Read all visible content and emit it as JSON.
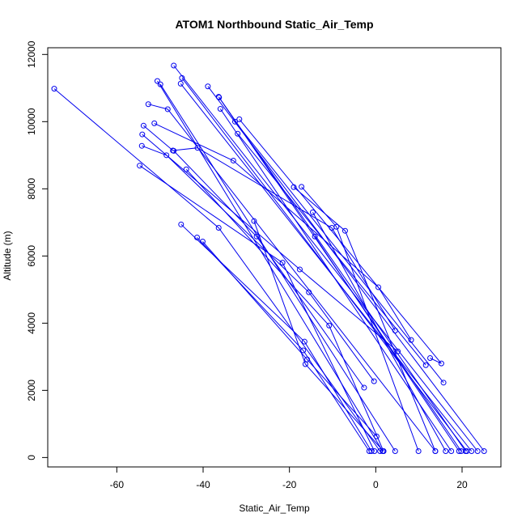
{
  "chart_data": {
    "type": "line",
    "title": "ATOM1 Northbound Static_Air_Temp",
    "xlabel": "Static_Air_Temp",
    "ylabel": "Altitude (m)",
    "xlim": [
      -76,
      29
    ],
    "ylim": [
      -280,
      12200
    ],
    "xticks": [
      -60,
      -40,
      -20,
      0,
      20
    ],
    "yticks": [
      0,
      2000,
      4000,
      6000,
      8000,
      10000,
      12000
    ],
    "grid": false,
    "legend": "none",
    "color": "#0000ee",
    "marker": "open-circle",
    "series": [
      {
        "x": [
          -74.5,
          -36.4,
          1.0
        ],
        "y": [
          10980,
          6840,
          190
        ]
      },
      {
        "x": [
          -50.6,
          1.6
        ],
        "y": [
          11210,
          190
        ]
      },
      {
        "x": [
          -49.9,
          4.5
        ],
        "y": [
          11110,
          190
        ]
      },
      {
        "x": [
          -44.9,
          21.1
        ],
        "y": [
          11300,
          190
        ]
      },
      {
        "x": [
          -45.2,
          22.2
        ],
        "y": [
          11130,
          190
        ]
      },
      {
        "x": [
          -46.8,
          23.6
        ],
        "y": [
          11670,
          190
        ]
      },
      {
        "x": [
          -38.9,
          25.1
        ],
        "y": [
          11050,
          190
        ]
      },
      {
        "x": [
          -36.3,
          19.8
        ],
        "y": [
          10720,
          190
        ]
      },
      {
        "x": [
          -36.4,
          20.8
        ],
        "y": [
          10740,
          190
        ]
      },
      {
        "x": [
          -36.0,
          17.5
        ],
        "y": [
          10380,
          190
        ]
      },
      {
        "x": [
          -31.6,
          15.2,
          12.6
        ],
        "y": [
          10070,
          2800,
          2960
        ]
      },
      {
        "x": [
          -32.6,
          15.7
        ],
        "y": [
          10000,
          2230
        ]
      },
      {
        "x": [
          -32.0,
          11.6
        ],
        "y": [
          9640,
          2750
        ]
      },
      {
        "x": [
          -52.7,
          -48.2,
          13.8
        ],
        "y": [
          10520,
          10370,
          190
        ]
      },
      {
        "x": [
          -51.3,
          -33.0,
          0.6,
          8.2
        ],
        "y": [
          9950,
          8840,
          5070,
          3500
        ]
      },
      {
        "x": [
          -53.8,
          -47.0,
          -41.3,
          -10.2,
          4.5
        ],
        "y": [
          9880,
          9140,
          9220,
          6840,
          3780
        ]
      },
      {
        "x": [
          -54.1,
          -17.6,
          5.1
        ],
        "y": [
          9620,
          5600,
          3160
        ]
      },
      {
        "x": [
          -54.2,
          -48.5,
          -15.5,
          -0.4
        ],
        "y": [
          9280,
          9000,
          4920,
          2270
        ]
      },
      {
        "x": [
          -46.8,
          -27.6,
          -2.7
        ],
        "y": [
          9130,
          6580,
          2080
        ]
      },
      {
        "x": [
          -54.7,
          -21.6,
          -0.3
        ],
        "y": [
          8690,
          5800,
          190
        ]
      },
      {
        "x": [
          -43.9,
          -10.8,
          1.8
        ],
        "y": [
          8580,
          3930,
          190
        ]
      },
      {
        "x": [
          -45.1,
          -16.5,
          -1.0
        ],
        "y": [
          6940,
          3450,
          190
        ]
      },
      {
        "x": [
          -41.4,
          -16.8,
          -1.5
        ],
        "y": [
          6550,
          3190,
          190
        ]
      },
      {
        "x": [
          -40.1,
          -15.9,
          0.2
        ],
        "y": [
          6430,
          2920,
          630
        ]
      },
      {
        "x": [
          -28.2,
          -16.3,
          1.8
        ],
        "y": [
          7040,
          2780,
          190
        ]
      },
      {
        "x": [
          -19.0,
          -7.1,
          13.8
        ],
        "y": [
          8050,
          6750,
          190
        ]
      },
      {
        "x": [
          -17.2,
          -9.1,
          9.9
        ],
        "y": [
          8060,
          6870,
          190
        ]
      },
      {
        "x": [
          -14.6,
          16.2
        ],
        "y": [
          7300,
          190
        ]
      },
      {
        "x": [
          -14.1,
          19.3
        ],
        "y": [
          6580,
          190
        ]
      }
    ]
  }
}
